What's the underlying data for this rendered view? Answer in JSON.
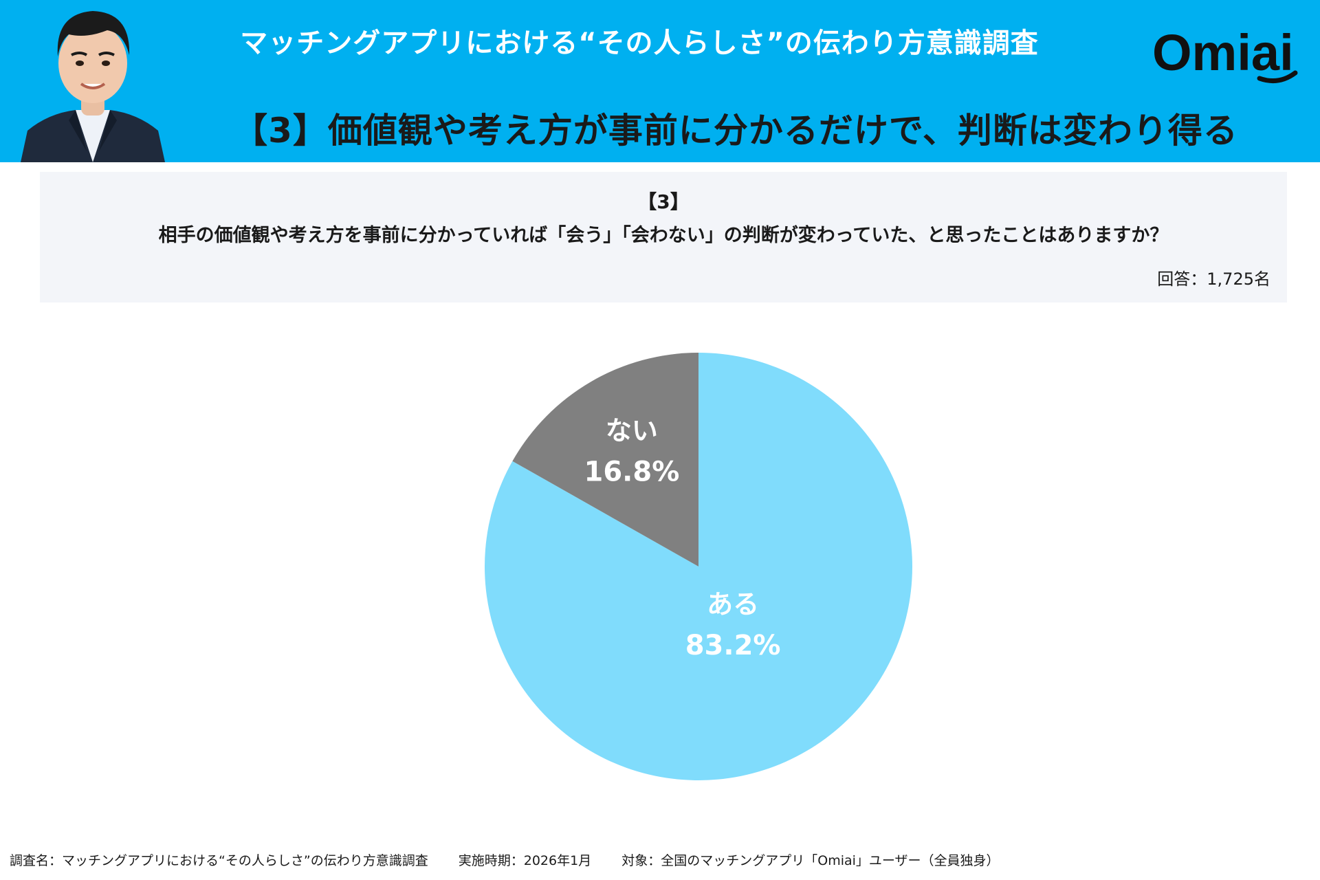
{
  "header": {
    "survey_title": "マッチングアプリにおける“その人らしさ”の伝わり方意識調査",
    "finding_title": "【3】価値観や考え方が事前に分かるだけで、判断は変わり得る",
    "logo_text": "Omiai",
    "background_color": "#00b0f0"
  },
  "question": {
    "number": "【3】",
    "text": "相手の価値観や考え方を事前に分かっていれば「会う」「会わない」の判断が変わっていた、と思ったことはありますか？",
    "respondents": "回答：1,725名"
  },
  "chart_data": {
    "type": "pie",
    "start": "12 o'clock",
    "direction": "clockwise",
    "slices": [
      {
        "label": "ある",
        "value": 83.2,
        "display": "83.2%",
        "color": "#80dcfc"
      },
      {
        "label": "ない",
        "value": 16.8,
        "display": "16.8%",
        "color": "#808080"
      }
    ],
    "label_color": "#ffffff"
  },
  "footer": {
    "survey_name": "調査名：マッチングアプリにおける“その人らしさ”の伝わり方意識調査",
    "period": "実施時期：2026年1月",
    "target": "対象：全国のマッチングアプリ「Omiai」ユーザー（全員独身）"
  }
}
